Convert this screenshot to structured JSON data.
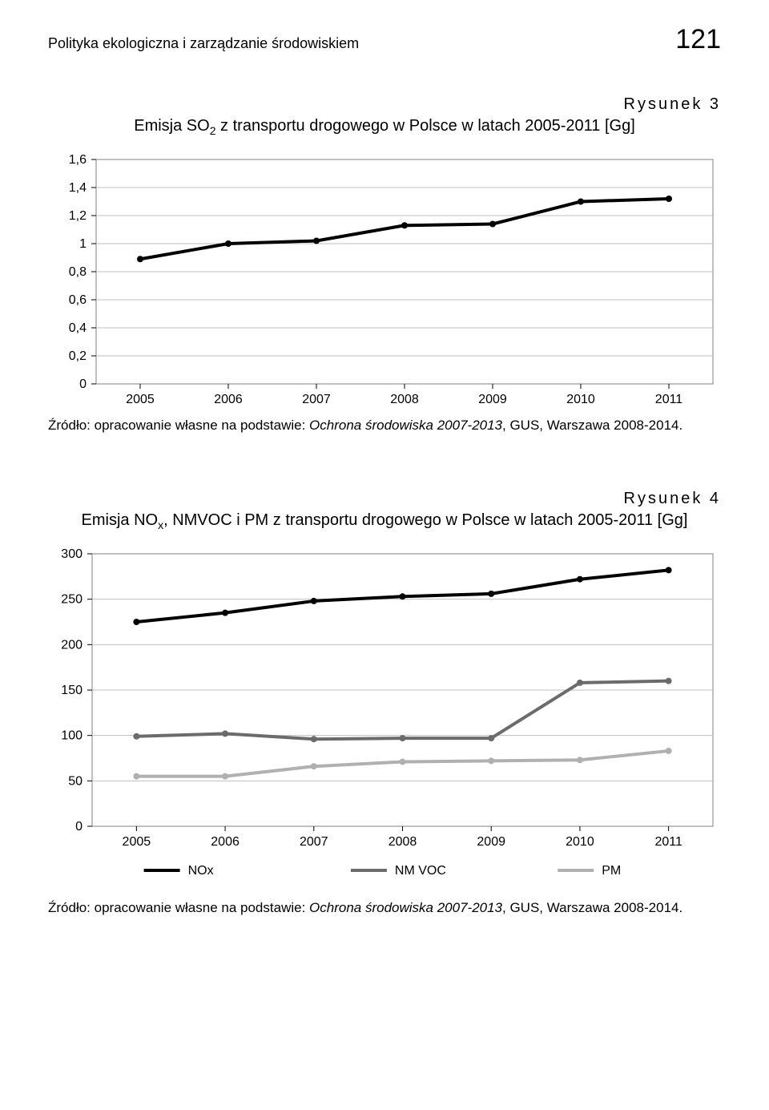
{
  "header": {
    "running_head": "Polityka ekologiczna i zarządzanie środowiskiem",
    "page_number": "121"
  },
  "figure3": {
    "label": "Rysunek 3",
    "title_pre": "Emisja SO",
    "title_sub": "2",
    "title_post": " z transportu drogowego w Polsce w latach 2005-2011 [Gg]",
    "type": "line",
    "x_labels": [
      "2005",
      "2006",
      "2007",
      "2008",
      "2009",
      "2010",
      "2011"
    ],
    "y_ticks": [
      "0",
      "0,2",
      "0,4",
      "0,6",
      "0,8",
      "1",
      "1,2",
      "1,4",
      "1,6"
    ],
    "y_min": 0,
    "y_max": 1.6,
    "y_step": 0.2,
    "series": {
      "values": [
        0.89,
        1.0,
        1.02,
        1.13,
        1.14,
        1.3,
        1.32
      ],
      "color": "#000000",
      "line_width": 4,
      "marker": "circle",
      "marker_size": 4
    },
    "grid_color": "#bfbfbf",
    "border_color": "#808080",
    "background_color": "#ffffff",
    "axis_font_size": 16,
    "source_prefix": "Źródło: opracowanie własne na podstawie: ",
    "source_ital": "Ochrona środowiska 2007-2013",
    "source_suffix": ", GUS, Warszawa 2008-2014."
  },
  "figure4": {
    "label": "Rysunek 4",
    "title_pre": "Emisja NO",
    "title_sub": "x",
    "title_post": ", NMVOC i PM z transportu drogowego w Polsce w latach 2005-2011 [Gg]",
    "type": "line",
    "x_labels": [
      "2005",
      "2006",
      "2007",
      "2008",
      "2009",
      "2010",
      "2011"
    ],
    "y_ticks": [
      "0",
      "50",
      "100",
      "150",
      "200",
      "250",
      "300"
    ],
    "y_min": 0,
    "y_max": 300,
    "y_step": 50,
    "series": [
      {
        "name": "NOx",
        "values": [
          225,
          235,
          248,
          253,
          256,
          272,
          282
        ],
        "color": "#000000",
        "line_width": 4
      },
      {
        "name": "NM VOC",
        "values": [
          99,
          102,
          96,
          97,
          97,
          158,
          160
        ],
        "color": "#6b6b6b",
        "line_width": 4
      },
      {
        "name": "PM",
        "values": [
          55,
          55,
          66,
          71,
          72,
          73,
          83
        ],
        "color": "#b0b0b0",
        "line_width": 4
      }
    ],
    "legend": [
      "NOx",
      "NM VOC",
      "PM"
    ],
    "grid_color": "#bfbfbf",
    "border_color": "#808080",
    "background_color": "#ffffff",
    "axis_font_size": 16,
    "source_prefix": "Źródło: opracowanie własne na podstawie: ",
    "source_ital": "Ochrona środowiska 2007-2013",
    "source_suffix": ", GUS, Warszawa 2008-2014."
  }
}
